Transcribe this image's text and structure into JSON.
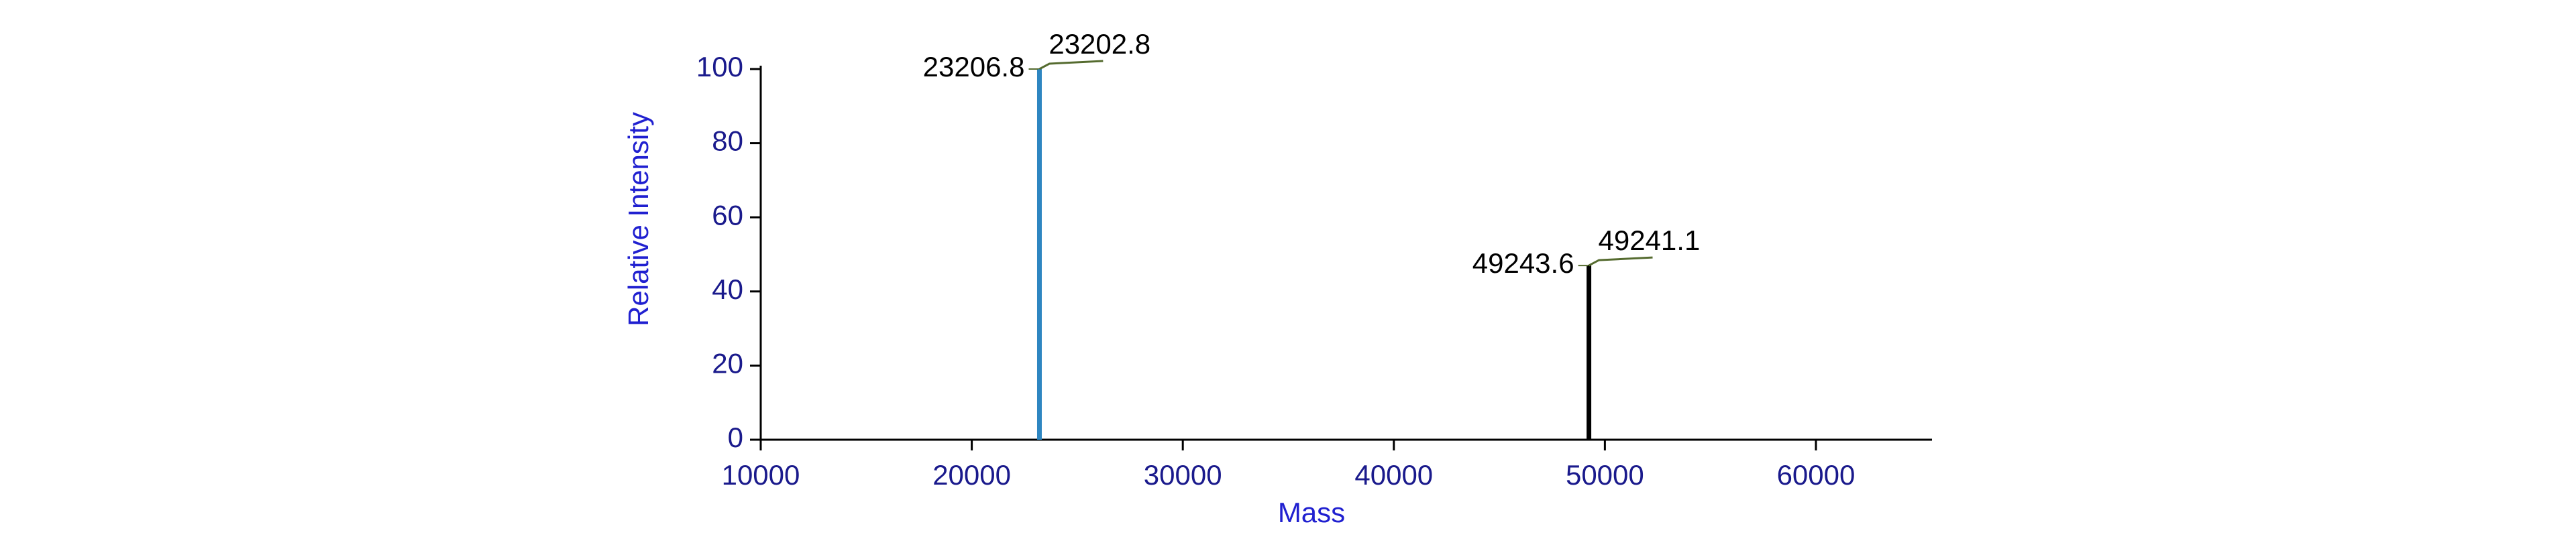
{
  "chart_data": {
    "type": "stem",
    "x_label": "Mass",
    "y_label": "Relative Intensity",
    "x": [
      23206.8,
      23202.8,
      49243.6,
      49241.1
    ],
    "values": [
      100,
      100,
      47,
      47
    ],
    "colors": [
      "#2e86c1",
      "#2e86c1",
      "#000000",
      "#000000"
    ],
    "xlim": [
      10000,
      65500
    ],
    "xticks": [
      10000,
      20000,
      30000,
      40000,
      50000,
      60000
    ],
    "ylim": [
      0,
      100
    ],
    "yticks": [
      0,
      20,
      40,
      60,
      80,
      100
    ]
  }
}
